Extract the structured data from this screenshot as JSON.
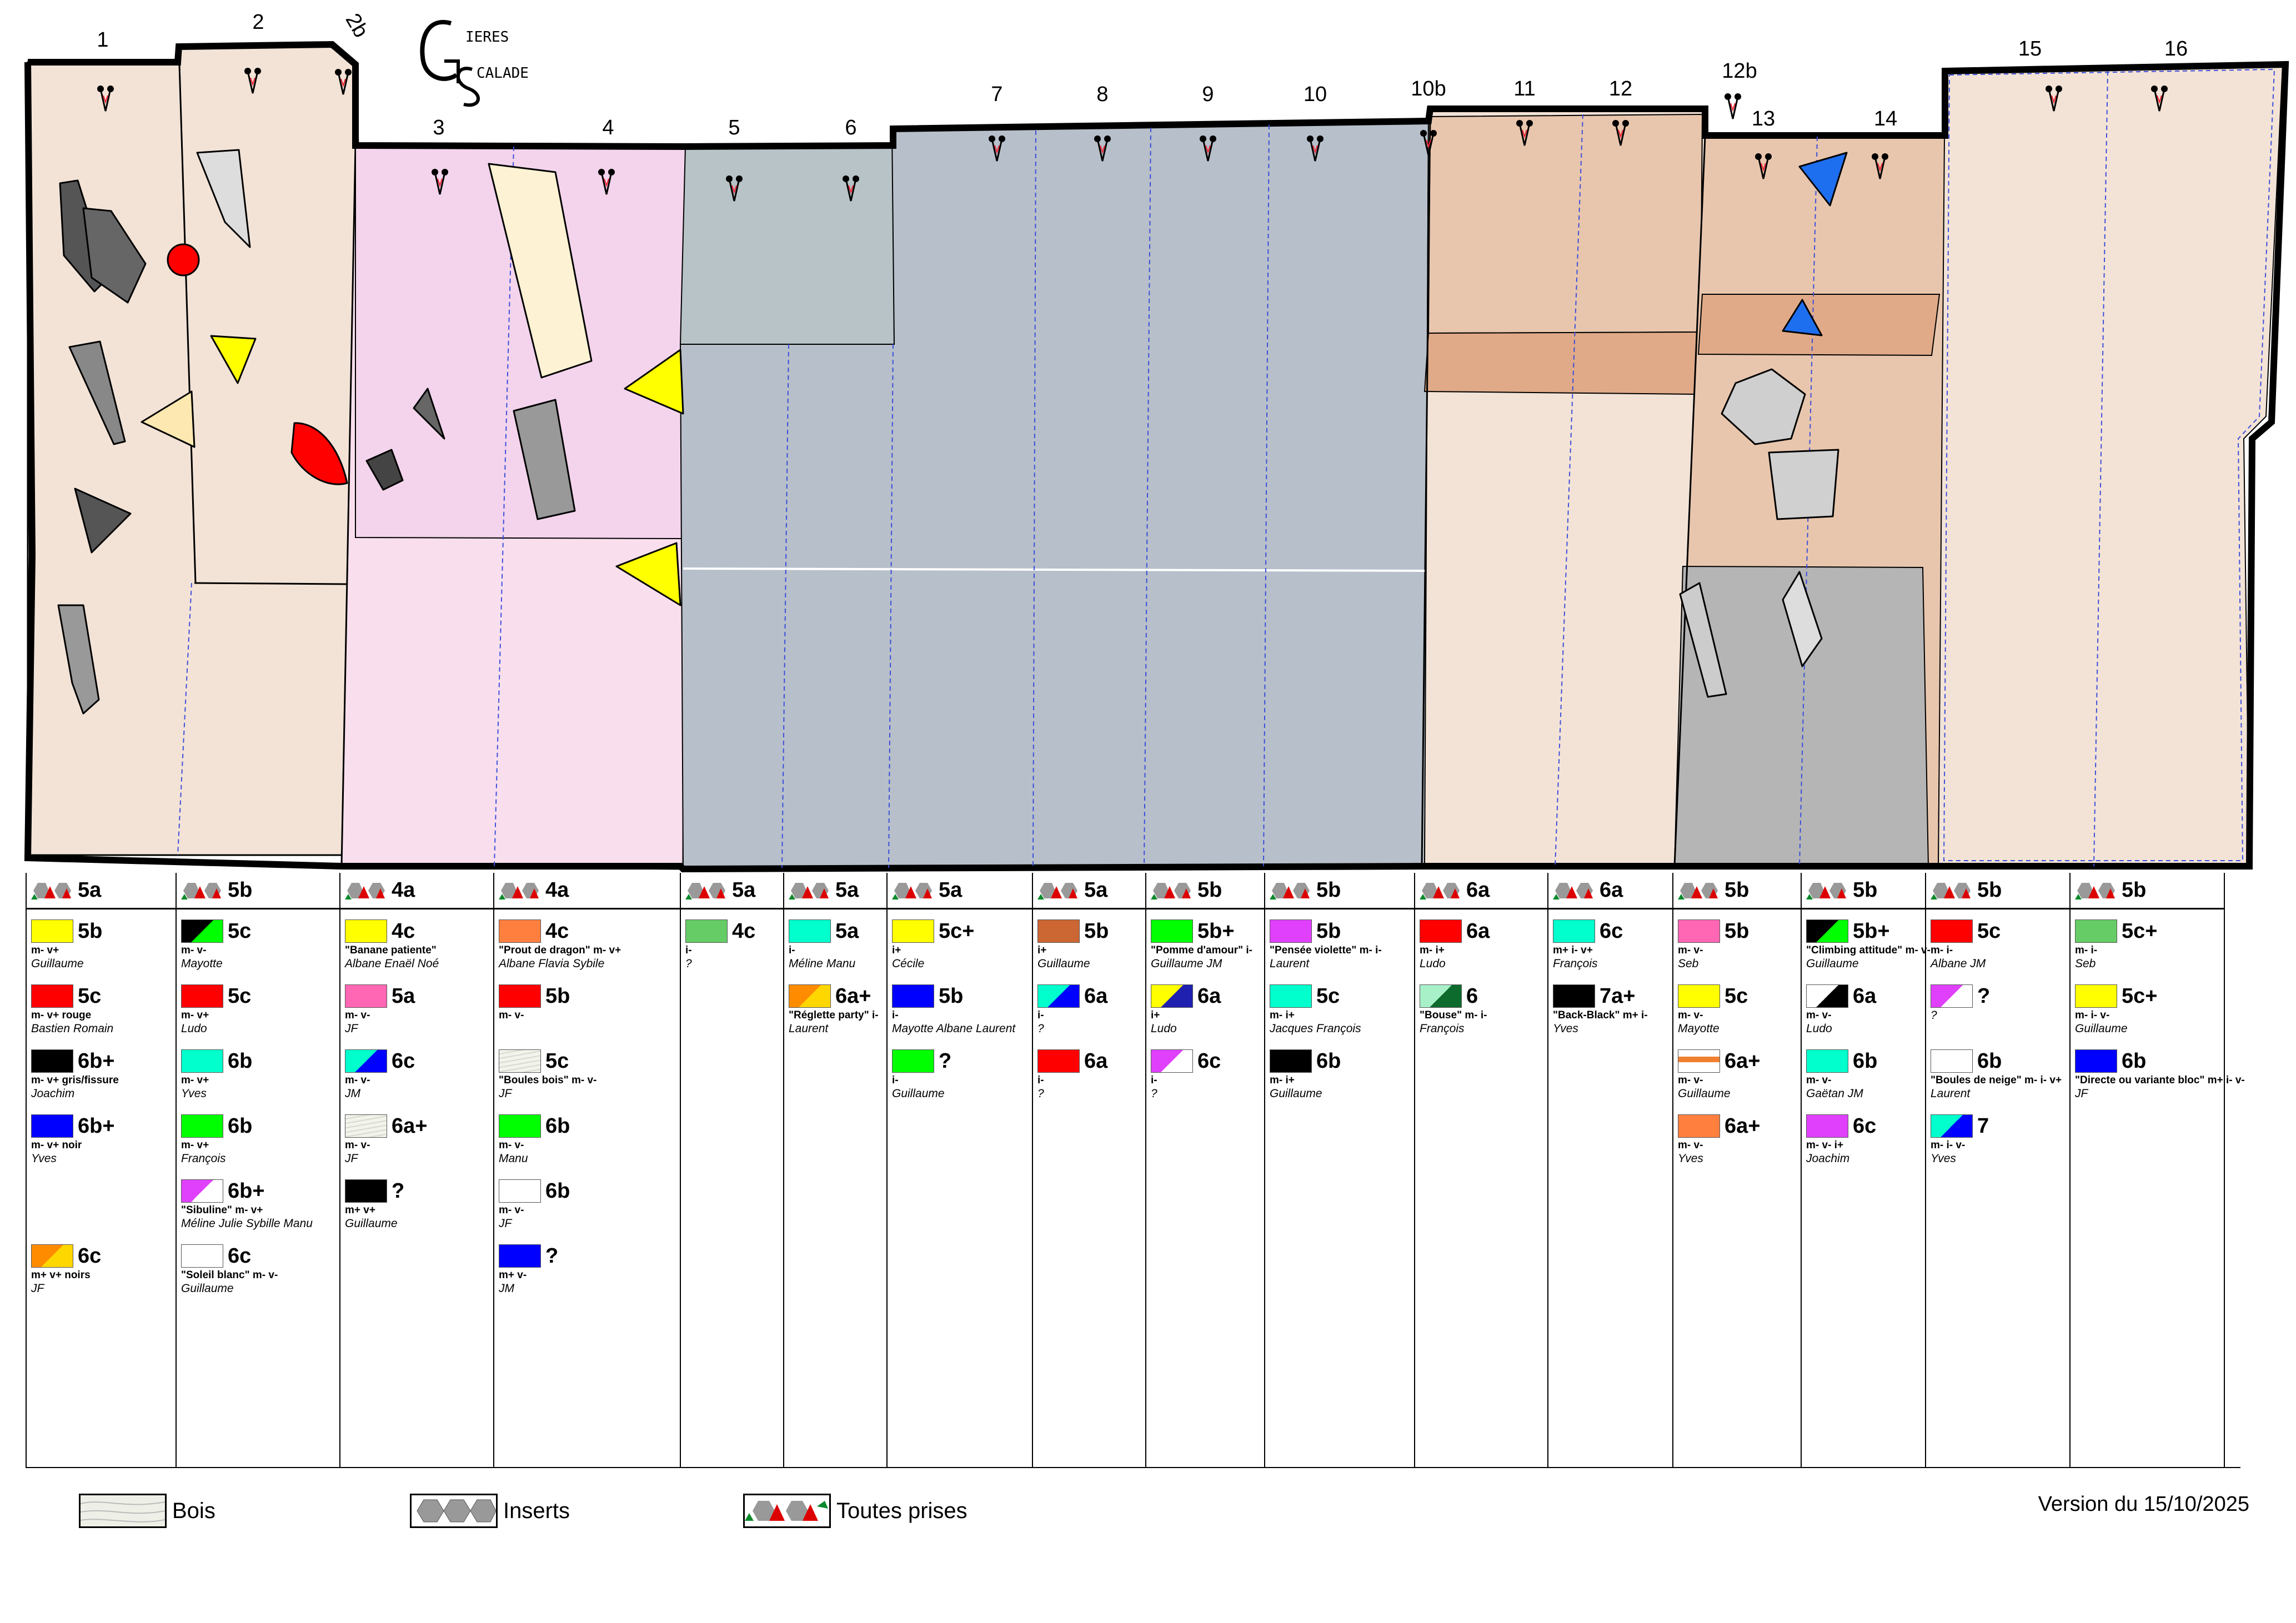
{
  "logo": {
    "line1": "IERES",
    "line2": "CALADE"
  },
  "route_numbers": [
    "1",
    "2",
    "2b",
    "3",
    "4",
    "5",
    "6",
    "7",
    "8",
    "9",
    "10",
    "10b",
    "11",
    "12",
    "12b",
    "13",
    "14",
    "15",
    "16"
  ],
  "colors": {
    "yellow": "#ffff00",
    "red": "#ff0000",
    "black": "#000000",
    "blue": "#0000ff",
    "green": "#00ff00",
    "turquoise": "#00ffcc",
    "pink": "#ff66b3",
    "magenta": "#e040fb",
    "orange": "#ff7f3f",
    "brown": "#cc6633",
    "lightgreen": "#66cc66",
    "white": "#ffffff",
    "wood": "#eef0e8"
  },
  "columns": [
    {
      "type": "all",
      "grade": "5a",
      "entries": [
        {
          "sw": "yellow",
          "grade": "5b",
          "desc": "m- v+",
          "setter": "Guillaume"
        },
        {
          "sw": "red",
          "grade": "5c",
          "desc": "m- v+ rouge",
          "setter": "Bastien Romain"
        },
        {
          "sw": "black",
          "grade": "6b+",
          "desc": "m- v+ gris/fissure",
          "setter": "Joachim"
        },
        {
          "sw": "blue",
          "grade": "6b+",
          "desc": "m- v+ noir",
          "setter": "Yves"
        },
        {
          "empty": true
        },
        {
          "sw": "orange-yellow",
          "grade": "6c",
          "desc": "m+ v+ noirs",
          "setter": "JF"
        }
      ]
    },
    {
      "type": "all",
      "grade": "5b",
      "entries": [
        {
          "sw": "black-green",
          "grade": "5c",
          "desc": "m- v-",
          "setter": "Mayotte"
        },
        {
          "sw": "red",
          "grade": "5c",
          "desc": "m- v+",
          "setter": "Ludo"
        },
        {
          "sw": "turquoise",
          "grade": "6b",
          "desc": "m- v+",
          "setter": "Yves"
        },
        {
          "sw": "green",
          "grade": "6b",
          "desc": "m- v+",
          "setter": "François"
        },
        {
          "sw": "magenta-white",
          "grade": "6b+",
          "desc": "\"Sibuline\" m- v+",
          "setter": "Méline Julie Sybille Manu"
        },
        {
          "sw": "white",
          "grade": "6c",
          "desc": "\"Soleil blanc\" m- v-",
          "setter": "Guillaume"
        }
      ]
    },
    {
      "type": "all",
      "grade": "4a",
      "entries": [
        {
          "sw": "yellow",
          "grade": "4c",
          "desc": "\"Banane patiente\"",
          "setter": "Albane Enaël Noé"
        },
        {
          "sw": "pink",
          "grade": "5a",
          "desc": "m- v-",
          "setter": "JF"
        },
        {
          "sw": "turquoise-blue",
          "grade": "6c",
          "desc": "m- v-",
          "setter": "JM"
        },
        {
          "sw": "wood",
          "grade": "6a+",
          "desc": "m- v-",
          "setter": "JF"
        },
        {
          "sw": "black",
          "grade": "?",
          "desc": "m+ v+",
          "setter": "Guillaume"
        }
      ]
    },
    {
      "type": "all",
      "grade": "4a",
      "entries": [
        {
          "sw": "orange",
          "grade": "4c",
          "desc": "\"Prout de dragon\" m- v+",
          "setter": "Albane Flavia Sybile"
        },
        {
          "sw": "red",
          "grade": "5b",
          "desc": "m- v-",
          "setter": ""
        },
        {
          "sw": "wood",
          "grade": "5c",
          "desc": "\"Boules bois\" m- v-",
          "setter": "JF"
        },
        {
          "sw": "green",
          "grade": "6b",
          "desc": "m- v-",
          "setter": "Manu"
        },
        {
          "sw": "white",
          "grade": "6b",
          "desc": "m- v-",
          "setter": "JF"
        },
        {
          "sw": "blue",
          "grade": "?",
          "desc": "m+ v-",
          "setter": "JM"
        }
      ]
    },
    {
      "type": "all",
      "grade": "5a",
      "entries": [
        {
          "sw": "lightgreen",
          "grade": "4c",
          "desc": "i-",
          "setter": "?"
        }
      ]
    },
    {
      "type": "all",
      "grade": "5a",
      "entries": [
        {
          "sw": "turquoise",
          "grade": "5a",
          "desc": "i-",
          "setter": "Méline Manu"
        },
        {
          "sw": "orange-yellow",
          "grade": "6a+",
          "desc": "\"Réglette party\" i-",
          "setter": "Laurent"
        }
      ]
    },
    {
      "type": "all",
      "grade": "5a",
      "entries": [
        {
          "sw": "yellow",
          "grade": "5c+",
          "desc": "i+",
          "setter": "Cécile"
        },
        {
          "sw": "blue",
          "grade": "5b",
          "desc": "i-",
          "setter": "Mayotte Albane Laurent"
        },
        {
          "sw": "green",
          "grade": "?",
          "desc": "i-",
          "setter": "Guillaume"
        }
      ]
    },
    {
      "type": "all",
      "grade": "5a",
      "entries": [
        {
          "sw": "brown",
          "grade": "5b",
          "desc": "i+",
          "setter": "Guillaume"
        },
        {
          "sw": "turquoise-blue",
          "grade": "6a",
          "desc": "i-",
          "setter": "?"
        },
        {
          "sw": "red",
          "grade": "6a",
          "desc": "i-",
          "setter": "?"
        }
      ]
    },
    {
      "type": "all",
      "grade": "5b",
      "entries": [
        {
          "sw": "green",
          "grade": "5b+",
          "desc": "\"Pomme d'amour\" i-",
          "setter": "Guillaume JM"
        },
        {
          "sw": "yellow-blue",
          "grade": "6a",
          "desc": "i+",
          "setter": "Ludo"
        },
        {
          "sw": "magenta-white",
          "grade": "6c",
          "desc": "i-",
          "setter": "?"
        }
      ]
    },
    {
      "type": "all",
      "grade": "5b",
      "entries": [
        {
          "sw": "magenta",
          "grade": "5b",
          "desc": "\"Pensée violette\" m- i-",
          "setter": "Laurent"
        },
        {
          "sw": "turquoise",
          "grade": "5c",
          "desc": "m- i+",
          "setter": "Jacques François"
        },
        {
          "sw": "black",
          "grade": "6b",
          "desc": "m- i+",
          "setter": "Guillaume"
        }
      ]
    },
    {
      "type": "all",
      "grade": "6a",
      "entries": [
        {
          "sw": "red",
          "grade": "6a",
          "desc": "m- i+",
          "setter": "Ludo"
        },
        {
          "sw": "mint-darkgreen",
          "grade": "6",
          "desc": "\"Bouse\" m- i-",
          "setter": "François"
        }
      ]
    },
    {
      "type": "all",
      "grade": "6a",
      "entries": [
        {
          "sw": "turquoise",
          "grade": "6c",
          "desc": "m+ i- v+",
          "setter": "François"
        },
        {
          "sw": "black",
          "grade": "7a+",
          "desc": "\"Back-Black\" m+ i-",
          "setter": "Yves"
        }
      ]
    },
    {
      "type": "all",
      "grade": "5b",
      "entries": [
        {
          "sw": "pink",
          "grade": "5b",
          "desc": "m- v-",
          "setter": "Seb"
        },
        {
          "sw": "yellow",
          "grade": "5c",
          "desc": "m- v-",
          "setter": "Mayotte"
        },
        {
          "sw": "wave",
          "grade": "6a+",
          "desc": "m- v-",
          "setter": "Guillaume"
        },
        {
          "sw": "orange",
          "grade": "6a+",
          "desc": "m- v-",
          "setter": "Yves"
        }
      ]
    },
    {
      "type": "all",
      "grade": "5b",
      "entries": [
        {
          "sw": "black-green",
          "grade": "5b+",
          "desc": "\"Climbing attitude\" m- v-",
          "setter": "Guillaume"
        },
        {
          "sw": "white-black",
          "grade": "6a",
          "desc": "m- v-",
          "setter": "Ludo"
        },
        {
          "sw": "turquoise",
          "grade": "6b",
          "desc": "m- v-",
          "setter": "Gaëtan JM"
        },
        {
          "sw": "magenta",
          "grade": "6c",
          "desc": "m- v- i+",
          "setter": "Joachim"
        }
      ]
    },
    {
      "type": "all",
      "grade": "5b",
      "entries": [
        {
          "sw": "red",
          "grade": "5c",
          "desc": "m- i-",
          "setter": "Albane JM"
        },
        {
          "sw": "magenta-white",
          "grade": "?",
          "desc": "",
          "setter": "?"
        },
        {
          "sw": "white",
          "grade": "6b",
          "desc": "\"Boules de neige\" m- i- v+",
          "setter": "Laurent"
        },
        {
          "sw": "turquoise-blue",
          "grade": "7",
          "desc": "m- i- v-",
          "setter": "Yves"
        }
      ]
    },
    {
      "type": "all",
      "grade": "5b",
      "entries": [
        {
          "sw": "lightgreen",
          "grade": "5c+",
          "desc": "m- i-",
          "setter": "Seb"
        },
        {
          "sw": "yellow",
          "grade": "5c+",
          "desc": "m- i- v-",
          "setter": "Guillaume"
        },
        {
          "sw": "blue",
          "grade": "6b",
          "desc": "\"Directe ou variante bloc\" m+ i- v-",
          "setter": "JF"
        }
      ]
    }
  ],
  "legend": [
    {
      "key": "wood",
      "label": "Bois"
    },
    {
      "key": "inserts",
      "label": "Inserts"
    },
    {
      "key": "all",
      "label": "Toutes prises"
    }
  ],
  "version": "Version du 15/10/2025"
}
